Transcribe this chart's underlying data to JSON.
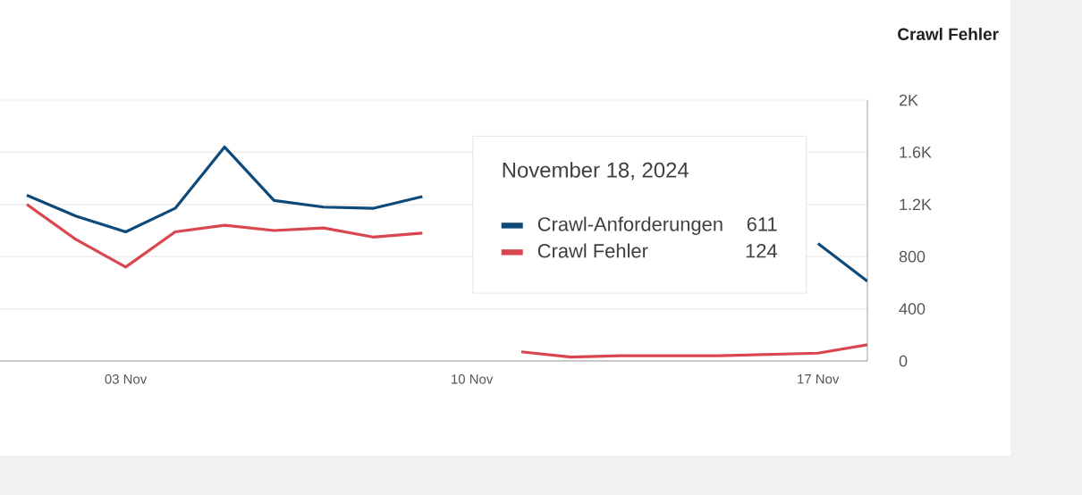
{
  "chart_data": {
    "type": "line",
    "title": "Crawl Fehler",
    "annotations": [
      "November 18, 2024",
      "611",
      "124"
    ],
    "x": [
      "2024-11-01",
      "2024-11-02",
      "2024-11-03",
      "2024-11-04",
      "2024-11-05",
      "2024-11-06",
      "2024-11-07",
      "2024-11-08",
      "2024-11-09",
      "2024-11-10",
      "2024-11-11",
      "2024-11-12",
      "2024-11-13",
      "2024-11-14",
      "2024-11-15",
      "2024-11-16",
      "2024-11-17",
      "2024-11-18"
    ],
    "series": [
      {
        "name": "Crawl-Anforderungen",
        "color": "#0d4a7a",
        "values": [
          1270,
          1110,
          990,
          1170,
          1640,
          1230,
          1180,
          1170,
          1260,
          null,
          null,
          null,
          null,
          null,
          null,
          null,
          900,
          611
        ]
      },
      {
        "name": "Crawl Fehler",
        "color": "#d9464f",
        "values": [
          1200,
          930,
          720,
          990,
          1040,
          1000,
          1020,
          950,
          980,
          null,
          70,
          30,
          40,
          40,
          40,
          50,
          60,
          124
        ]
      }
    ],
    "xlim": [
      "2024-10-31T11:00",
      "2024-11-18"
    ],
    "xticks": [
      {
        "value": "2024-11-03",
        "label": "03 Nov"
      },
      {
        "value": "2024-11-10",
        "label": "10 Nov"
      },
      {
        "value": "2024-11-17",
        "label": "17 Nov"
      }
    ],
    "ylim": [
      0,
      2000
    ],
    "yticks": [
      0,
      400,
      800,
      {
        "value": 1200,
        "label": "1.2K"
      },
      {
        "value": 1600,
        "label": "1.6K"
      },
      {
        "value": 2000,
        "label": "2K"
      }
    ],
    "grid": "y",
    "legend": "right"
  }
}
